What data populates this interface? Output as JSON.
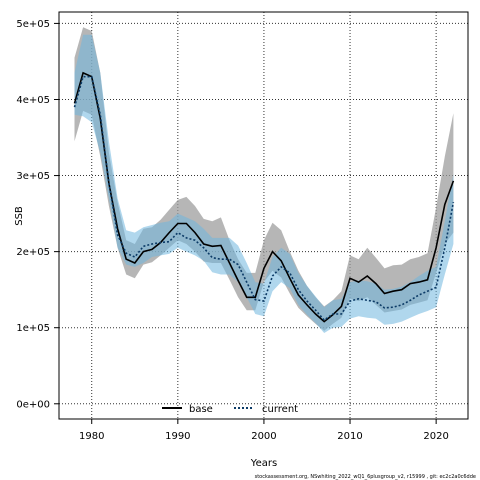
{
  "chart_data": {
    "type": "line",
    "title": "",
    "xlabel": "Years",
    "ylabel": "SSB",
    "xlim": [
      1976.2,
      2023.7
    ],
    "ylim": [
      -20000,
      515000
    ],
    "grid": true,
    "legend_position": "bottom-center",
    "x_ticks": [
      1980,
      1990,
      2000,
      2010,
      2020
    ],
    "x_tick_labels": [
      "1980",
      "1990",
      "2000",
      "2010",
      "2020"
    ],
    "y_ticks": [
      0,
      100000,
      200000,
      300000,
      400000,
      500000
    ],
    "y_tick_labels": [
      "0e+00",
      "1e+05",
      "2e+05",
      "3e+05",
      "4e+05",
      "5e+05"
    ],
    "footnote": "stockassessment.org, NSwhiting_2022_wQ1_6plusgroup_v2, r15999 , git: ec2c2a0c6dde",
    "colors": {
      "base_band": "#9a9a9a",
      "current_band": "#6fb7de",
      "base_line": "#000000",
      "current_line": "#0b3a66"
    },
    "x": [
      1978,
      1979,
      1980,
      1981,
      1982,
      1983,
      1984,
      1985,
      1986,
      1987,
      1988,
      1989,
      1990,
      1991,
      1992,
      1993,
      1994,
      1995,
      1996,
      1997,
      1998,
      1999,
      2000,
      2001,
      2002,
      2003,
      2004,
      2005,
      2006,
      2007,
      2008,
      2009,
      2010,
      2011,
      2012,
      2013,
      2014,
      2015,
      2016,
      2017,
      2018,
      2019,
      2020,
      2021,
      2022
    ],
    "series": [
      {
        "name": "base",
        "values": [
          395000,
          435000,
          430000,
          375000,
          290000,
          230000,
          190000,
          185000,
          200000,
          203000,
          212000,
          225000,
          237000,
          237000,
          225000,
          210000,
          207000,
          208000,
          185000,
          162000,
          140000,
          140000,
          178000,
          200000,
          188000,
          165000,
          143000,
          130000,
          118000,
          108000,
          117000,
          128000,
          165000,
          160000,
          168000,
          158000,
          145000,
          148000,
          150000,
          158000,
          160000,
          163000,
          205000,
          262000,
          293000
        ],
        "lower": [
          345000,
          385000,
          380000,
          325000,
          260000,
          205000,
          170000,
          165000,
          183000,
          186000,
          195000,
          205000,
          215000,
          210000,
          200000,
          187000,
          185000,
          185000,
          163000,
          140000,
          123000,
          123000,
          160000,
          175000,
          166000,
          145000,
          126000,
          115000,
          105000,
          96000,
          105000,
          113000,
          138000,
          135000,
          140000,
          130000,
          120000,
          122000,
          124000,
          130000,
          133000,
          136000,
          172000,
          210000,
          225000
        ],
        "upper": [
          455000,
          495000,
          490000,
          435000,
          330000,
          265000,
          215000,
          210000,
          230000,
          232000,
          242000,
          255000,
          268000,
          272000,
          260000,
          243000,
          240000,
          245000,
          215000,
          190000,
          172000,
          172000,
          215000,
          238000,
          228000,
          200000,
          175000,
          155000,
          140000,
          128000,
          136000,
          148000,
          195000,
          190000,
          205000,
          192000,
          178000,
          182000,
          183000,
          190000,
          193000,
          198000,
          258000,
          325000,
          382000
        ]
      },
      {
        "name": "current",
        "values": [
          390000,
          430000,
          430000,
          380000,
          290000,
          222000,
          198000,
          193000,
          207000,
          210000,
          212000,
          213000,
          225000,
          218000,
          215000,
          205000,
          192000,
          190000,
          190000,
          183000,
          160000,
          137000,
          135000,
          168000,
          180000,
          172000,
          150000,
          135000,
          123000,
          110000,
          118000,
          118000,
          135000,
          138000,
          136000,
          134000,
          126000,
          127000,
          130000,
          136000,
          143000,
          148000,
          153000,
          205000,
          265000
        ],
        "lower": [
          380000,
          378000,
          370000,
          330000,
          270000,
          205000,
          183000,
          180000,
          185000,
          193000,
          195000,
          197000,
          205000,
          200000,
          195000,
          188000,
          173000,
          170000,
          170000,
          160000,
          140000,
          118000,
          115000,
          148000,
          160000,
          152000,
          130000,
          117000,
          106000,
          93000,
          100000,
          101000,
          112000,
          115000,
          113000,
          112000,
          104000,
          105000,
          108000,
          113000,
          118000,
          122000,
          127000,
          170000,
          210000
        ],
        "upper": [
          435000,
          485000,
          485000,
          435000,
          345000,
          270000,
          228000,
          225000,
          232000,
          235000,
          238000,
          240000,
          250000,
          245000,
          240000,
          230000,
          218000,
          218000,
          218000,
          208000,
          185000,
          160000,
          158000,
          193000,
          205000,
          197000,
          172000,
          155000,
          141000,
          127000,
          136000,
          138000,
          160000,
          162000,
          161000,
          158000,
          150000,
          151000,
          154000,
          160000,
          168000,
          175000,
          180000,
          240000,
          302000
        ]
      }
    ]
  }
}
